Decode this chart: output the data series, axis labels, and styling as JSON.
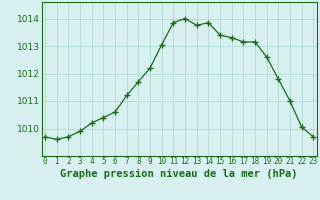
{
  "hours": [
    0,
    1,
    2,
    3,
    4,
    5,
    6,
    7,
    8,
    9,
    10,
    11,
    12,
    13,
    14,
    15,
    16,
    17,
    18,
    19,
    20,
    21,
    22,
    23
  ],
  "values": [
    1009.7,
    1009.6,
    1009.7,
    1009.9,
    1010.2,
    1010.4,
    1010.6,
    1011.2,
    1011.7,
    1012.2,
    1013.05,
    1013.85,
    1014.0,
    1013.75,
    1013.85,
    1013.4,
    1013.3,
    1013.15,
    1013.15,
    1012.6,
    1011.8,
    1011.0,
    1010.05,
    1009.7
  ],
  "line_color": "#1a6b1a",
  "marker": "+",
  "marker_size": 4,
  "marker_color": "#1a6b1a",
  "bg_color": "#d8f0f0",
  "grid_color": "#aad4d4",
  "xlabel": "Graphe pression niveau de la mer (hPa)",
  "xlabel_fontsize": 7.5,
  "tick_color": "#1a6b1a",
  "ylim": [
    1009.0,
    1014.6
  ],
  "yticks": [
    1010,
    1011,
    1012,
    1013,
    1014
  ],
  "xticks": [
    0,
    1,
    2,
    3,
    4,
    5,
    6,
    7,
    8,
    9,
    10,
    11,
    12,
    13,
    14,
    15,
    16,
    17,
    18,
    19,
    20,
    21,
    22,
    23
  ],
  "xtick_labels": [
    "0",
    "1",
    "2",
    "3",
    "4",
    "5",
    "6",
    "7",
    "8",
    "9",
    "10",
    "11",
    "12",
    "13",
    "14",
    "15",
    "16",
    "17",
    "18",
    "19",
    "20",
    "21",
    "22",
    "23"
  ],
  "ytick_fontsize": 6.5,
  "xtick_fontsize": 5.5
}
